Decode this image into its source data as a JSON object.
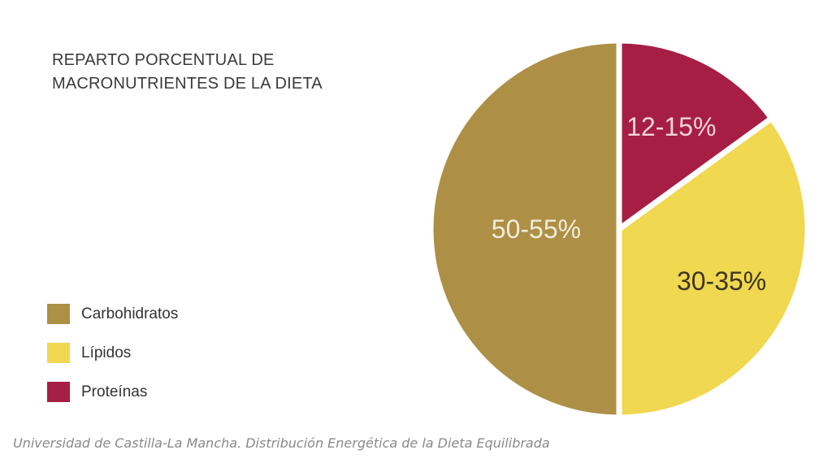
{
  "title_lines": [
    "REPARTO PORCENTUAL DE",
    "MACRONUTRIENTES DE LA DIETA"
  ],
  "caption": "Universidad de Castilla-La Mancha. Distribución Energética de la Dieta Equilibrada",
  "chart_data": {
    "type": "pie",
    "title": "REPARTO PORCENTUAL DE MACRONUTRIENTES DE LA DIETA",
    "legend_position": "bottom-left",
    "start_angle_deg": 0,
    "direction": "clockwise",
    "slices": [
      {
        "label": "Proteínas",
        "value": 15,
        "display": "12-15%",
        "color": "#a61e44",
        "text_color": "#f3d3db"
      },
      {
        "label": "Lípidos",
        "value": 35,
        "display": "30-35%",
        "color": "#f0d850",
        "text_color": "#3d3520"
      },
      {
        "label": "Carbohidratos",
        "value": 50,
        "display": "50-55%",
        "color": "#ad9046",
        "text_color": "#f3ecd9"
      }
    ]
  },
  "legend": [
    {
      "label": "Carbohidratos",
      "color": "#ad9046"
    },
    {
      "label": "Lípidos",
      "color": "#f0d850"
    },
    {
      "label": "Proteínas",
      "color": "#a61e44"
    }
  ]
}
